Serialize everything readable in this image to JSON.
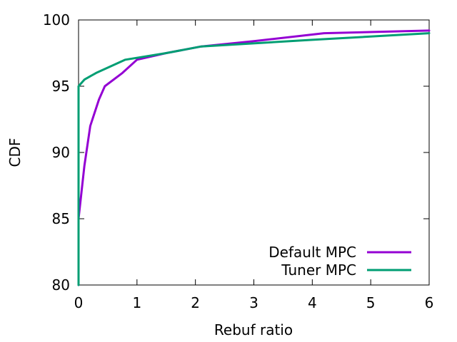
{
  "chart_data": {
    "type": "line",
    "title": "",
    "xlabel": "Rebuf ratio",
    "ylabel": "CDF",
    "xlim": [
      0,
      6
    ],
    "ylim": [
      80,
      100
    ],
    "xticks": [
      "0",
      "1",
      "2",
      "3",
      "4",
      "5",
      "6"
    ],
    "yticks": [
      "80",
      "85",
      "90",
      "95",
      "100"
    ],
    "grid": false,
    "legend_position": "bottom-right",
    "series": [
      {
        "name": "Default MPC",
        "color": "#9400d3",
        "points": [
          [
            0,
            80
          ],
          [
            0,
            85
          ],
          [
            0.05,
            87
          ],
          [
            0.1,
            89
          ],
          [
            0.2,
            92
          ],
          [
            0.35,
            94
          ],
          [
            0.45,
            95
          ],
          [
            0.75,
            96
          ],
          [
            1.0,
            97
          ],
          [
            1.5,
            97.5
          ],
          [
            2.1,
            98
          ],
          [
            3.0,
            98.4
          ],
          [
            4.2,
            99
          ],
          [
            6,
            99.2
          ]
        ]
      },
      {
        "name": "Tuner MPC",
        "color": "#009e73",
        "points": [
          [
            0,
            80
          ],
          [
            0,
            94
          ],
          [
            0,
            95
          ],
          [
            0.1,
            95.5
          ],
          [
            0.3,
            96
          ],
          [
            0.8,
            97
          ],
          [
            1.5,
            97.5
          ],
          [
            2.1,
            98
          ],
          [
            4.0,
            98.5
          ],
          [
            6,
            99
          ]
        ]
      }
    ]
  }
}
